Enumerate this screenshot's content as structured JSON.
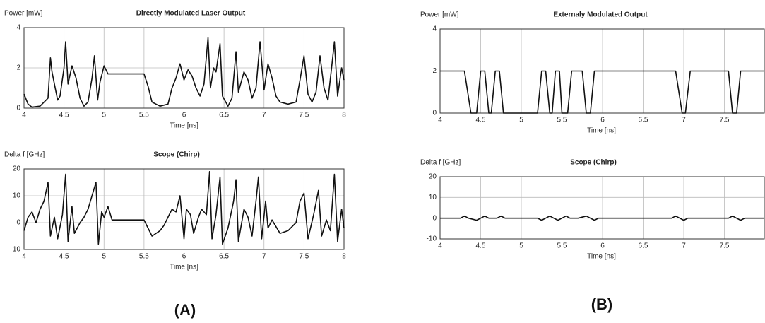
{
  "chart_data": [
    {
      "type": "line",
      "title": "Directly Modulated Laser Output",
      "ylabel": "Power [mW]",
      "xlabel": "Time [ns]",
      "xlim": [
        4,
        8
      ],
      "xticks": [
        4,
        4.5,
        5,
        5.5,
        6,
        6.5,
        7,
        7.5,
        8
      ],
      "ylim": [
        0,
        4
      ],
      "yticks": [
        0,
        2,
        4
      ],
      "grid": true,
      "color": "#111111",
      "x": [
        4.0,
        4.05,
        4.1,
        4.2,
        4.3,
        4.33,
        4.35,
        4.38,
        4.42,
        4.45,
        4.5,
        4.52,
        4.55,
        4.6,
        4.65,
        4.7,
        4.75,
        4.8,
        4.85,
        4.88,
        4.92,
        4.95,
        5.0,
        5.05,
        5.1,
        5.3,
        5.5,
        5.55,
        5.6,
        5.7,
        5.8,
        5.85,
        5.9,
        5.95,
        6.0,
        6.05,
        6.1,
        6.15,
        6.2,
        6.25,
        6.3,
        6.33,
        6.37,
        6.4,
        6.45,
        6.48,
        6.55,
        6.6,
        6.65,
        6.68,
        6.75,
        6.8,
        6.85,
        6.9,
        6.95,
        7.0,
        7.05,
        7.1,
        7.15,
        7.2,
        7.3,
        7.4,
        7.45,
        7.5,
        7.55,
        7.6,
        7.65,
        7.7,
        7.75,
        7.8,
        7.85,
        7.88,
        7.92,
        7.97,
        8.0
      ],
      "values": [
        0.7,
        0.2,
        0.05,
        0.1,
        0.5,
        2.5,
        1.8,
        1.2,
        0.4,
        0.6,
        2.0,
        3.3,
        1.2,
        2.1,
        1.5,
        0.5,
        0.1,
        0.3,
        1.5,
        2.6,
        0.4,
        1.3,
        2.1,
        1.7,
        1.7,
        1.7,
        1.7,
        1.1,
        0.3,
        0.1,
        0.2,
        1.0,
        1.5,
        2.2,
        1.4,
        1.9,
        1.6,
        1.0,
        0.6,
        1.2,
        3.5,
        1.0,
        2.0,
        1.8,
        3.2,
        0.6,
        0.1,
        0.5,
        2.8,
        0.8,
        1.8,
        1.4,
        0.5,
        1.0,
        3.3,
        0.9,
        2.2,
        1.5,
        0.6,
        0.3,
        0.2,
        0.3,
        1.4,
        2.6,
        0.7,
        0.3,
        0.8,
        2.6,
        1.0,
        0.4,
        2.2,
        3.3,
        0.6,
        2.0,
        1.4
      ]
    },
    {
      "type": "line",
      "title": "Scope (Chirp)",
      "ylabel": "Delta f [GHz]",
      "xlabel": "Time [ns]",
      "xlim": [
        4,
        8
      ],
      "xticks": [
        4,
        4.5,
        5,
        5.5,
        6,
        6.5,
        7,
        7.5,
        8
      ],
      "ylim": [
        -10,
        20
      ],
      "yticks": [
        -10,
        0,
        10,
        20
      ],
      "grid": true,
      "color": "#111111",
      "x": [
        4.0,
        4.05,
        4.1,
        4.15,
        4.2,
        4.25,
        4.3,
        4.33,
        4.38,
        4.42,
        4.48,
        4.52,
        4.55,
        4.6,
        4.63,
        4.7,
        4.75,
        4.8,
        4.87,
        4.9,
        4.93,
        4.97,
        5.0,
        5.05,
        5.1,
        5.3,
        5.5,
        5.55,
        5.6,
        5.7,
        5.75,
        5.8,
        5.85,
        5.9,
        5.95,
        6.0,
        6.03,
        6.08,
        6.12,
        6.18,
        6.22,
        6.28,
        6.32,
        6.35,
        6.4,
        6.45,
        6.48,
        6.55,
        6.62,
        6.65,
        6.68,
        6.75,
        6.8,
        6.85,
        6.9,
        6.93,
        6.97,
        7.02,
        7.05,
        7.1,
        7.2,
        7.3,
        7.4,
        7.45,
        7.5,
        7.55,
        7.62,
        7.68,
        7.72,
        7.78,
        7.83,
        7.88,
        7.92,
        7.97,
        8.0
      ],
      "values": [
        -3,
        2,
        4,
        0,
        5,
        8,
        15,
        -5,
        2,
        -6,
        3,
        18,
        -7,
        6,
        -4,
        0,
        2,
        5,
        12,
        15,
        -8,
        4,
        2,
        6,
        1,
        1,
        1,
        -2,
        -5,
        -3,
        -1,
        2,
        5,
        4,
        10,
        -6,
        5,
        3,
        -4,
        2,
        5,
        3,
        19,
        -6,
        3,
        17,
        -8,
        -2,
        8,
        16,
        -7,
        5,
        2,
        -5,
        8,
        17,
        -6,
        8,
        -2,
        1,
        -4,
        -3,
        0,
        8,
        11,
        -6,
        3,
        12,
        -5,
        1,
        -3,
        18,
        -7,
        5,
        -2
      ]
    },
    {
      "type": "line",
      "title": "Externaly Modulated Output",
      "ylabel": "Power [mW]",
      "xlabel": "Time [ns]",
      "xlim": [
        4,
        8
      ],
      "xticks": [
        4,
        4.5,
        5,
        5.5,
        6,
        6.5,
        7,
        7.5,
        8
      ],
      "ylim": [
        0,
        4
      ],
      "yticks": [
        0,
        2,
        4
      ],
      "grid": true,
      "color": "#111111",
      "x": [
        4.0,
        4.3,
        4.38,
        4.45,
        4.5,
        4.55,
        4.6,
        4.63,
        4.68,
        4.73,
        4.78,
        5.2,
        5.25,
        5.3,
        5.35,
        5.38,
        5.42,
        5.47,
        5.5,
        5.57,
        5.62,
        5.75,
        5.8,
        5.85,
        5.9,
        6.9,
        6.98,
        7.02,
        7.08,
        7.55,
        7.6,
        7.65,
        7.7,
        8.0
      ],
      "values": [
        2,
        2,
        0,
        0,
        2,
        2,
        0,
        0,
        2,
        2,
        0,
        0,
        2,
        2,
        0,
        0,
        2,
        2,
        0,
        0,
        2,
        2,
        0,
        0,
        2,
        2,
        0,
        0,
        2,
        2,
        0,
        0,
        2,
        2
      ]
    },
    {
      "type": "line",
      "title": "Scope (Chirp)",
      "ylabel": "Delta f [GHz]",
      "xlabel": "Time [ns]",
      "xlim": [
        4,
        8
      ],
      "xticks": [
        4,
        4.5,
        5,
        5.5,
        6,
        6.5,
        7,
        7.5,
        8
      ],
      "ylim": [
        -10,
        20
      ],
      "yticks": [
        -10,
        0,
        10,
        20
      ],
      "grid": true,
      "color": "#111111",
      "x": [
        4.0,
        4.25,
        4.3,
        4.35,
        4.45,
        4.5,
        4.55,
        4.6,
        4.7,
        4.75,
        4.8,
        5.2,
        5.25,
        5.3,
        5.35,
        5.4,
        5.45,
        5.5,
        5.55,
        5.6,
        5.7,
        5.8,
        5.85,
        5.9,
        5.95,
        6.85,
        6.9,
        6.95,
        7.0,
        7.05,
        7.55,
        7.6,
        7.65,
        7.7,
        7.75,
        8.0
      ],
      "values": [
        0,
        0,
        1,
        0,
        -1,
        0,
        1,
        0,
        0,
        1,
        0,
        0,
        -1,
        0,
        1,
        0,
        -1,
        0,
        1,
        0,
        0,
        1,
        0,
        -1,
        0,
        0,
        1,
        0,
        -1,
        0,
        0,
        1,
        0,
        -1,
        0,
        0
      ]
    }
  ],
  "panel_labels": [
    "(A)",
    "(B)"
  ]
}
